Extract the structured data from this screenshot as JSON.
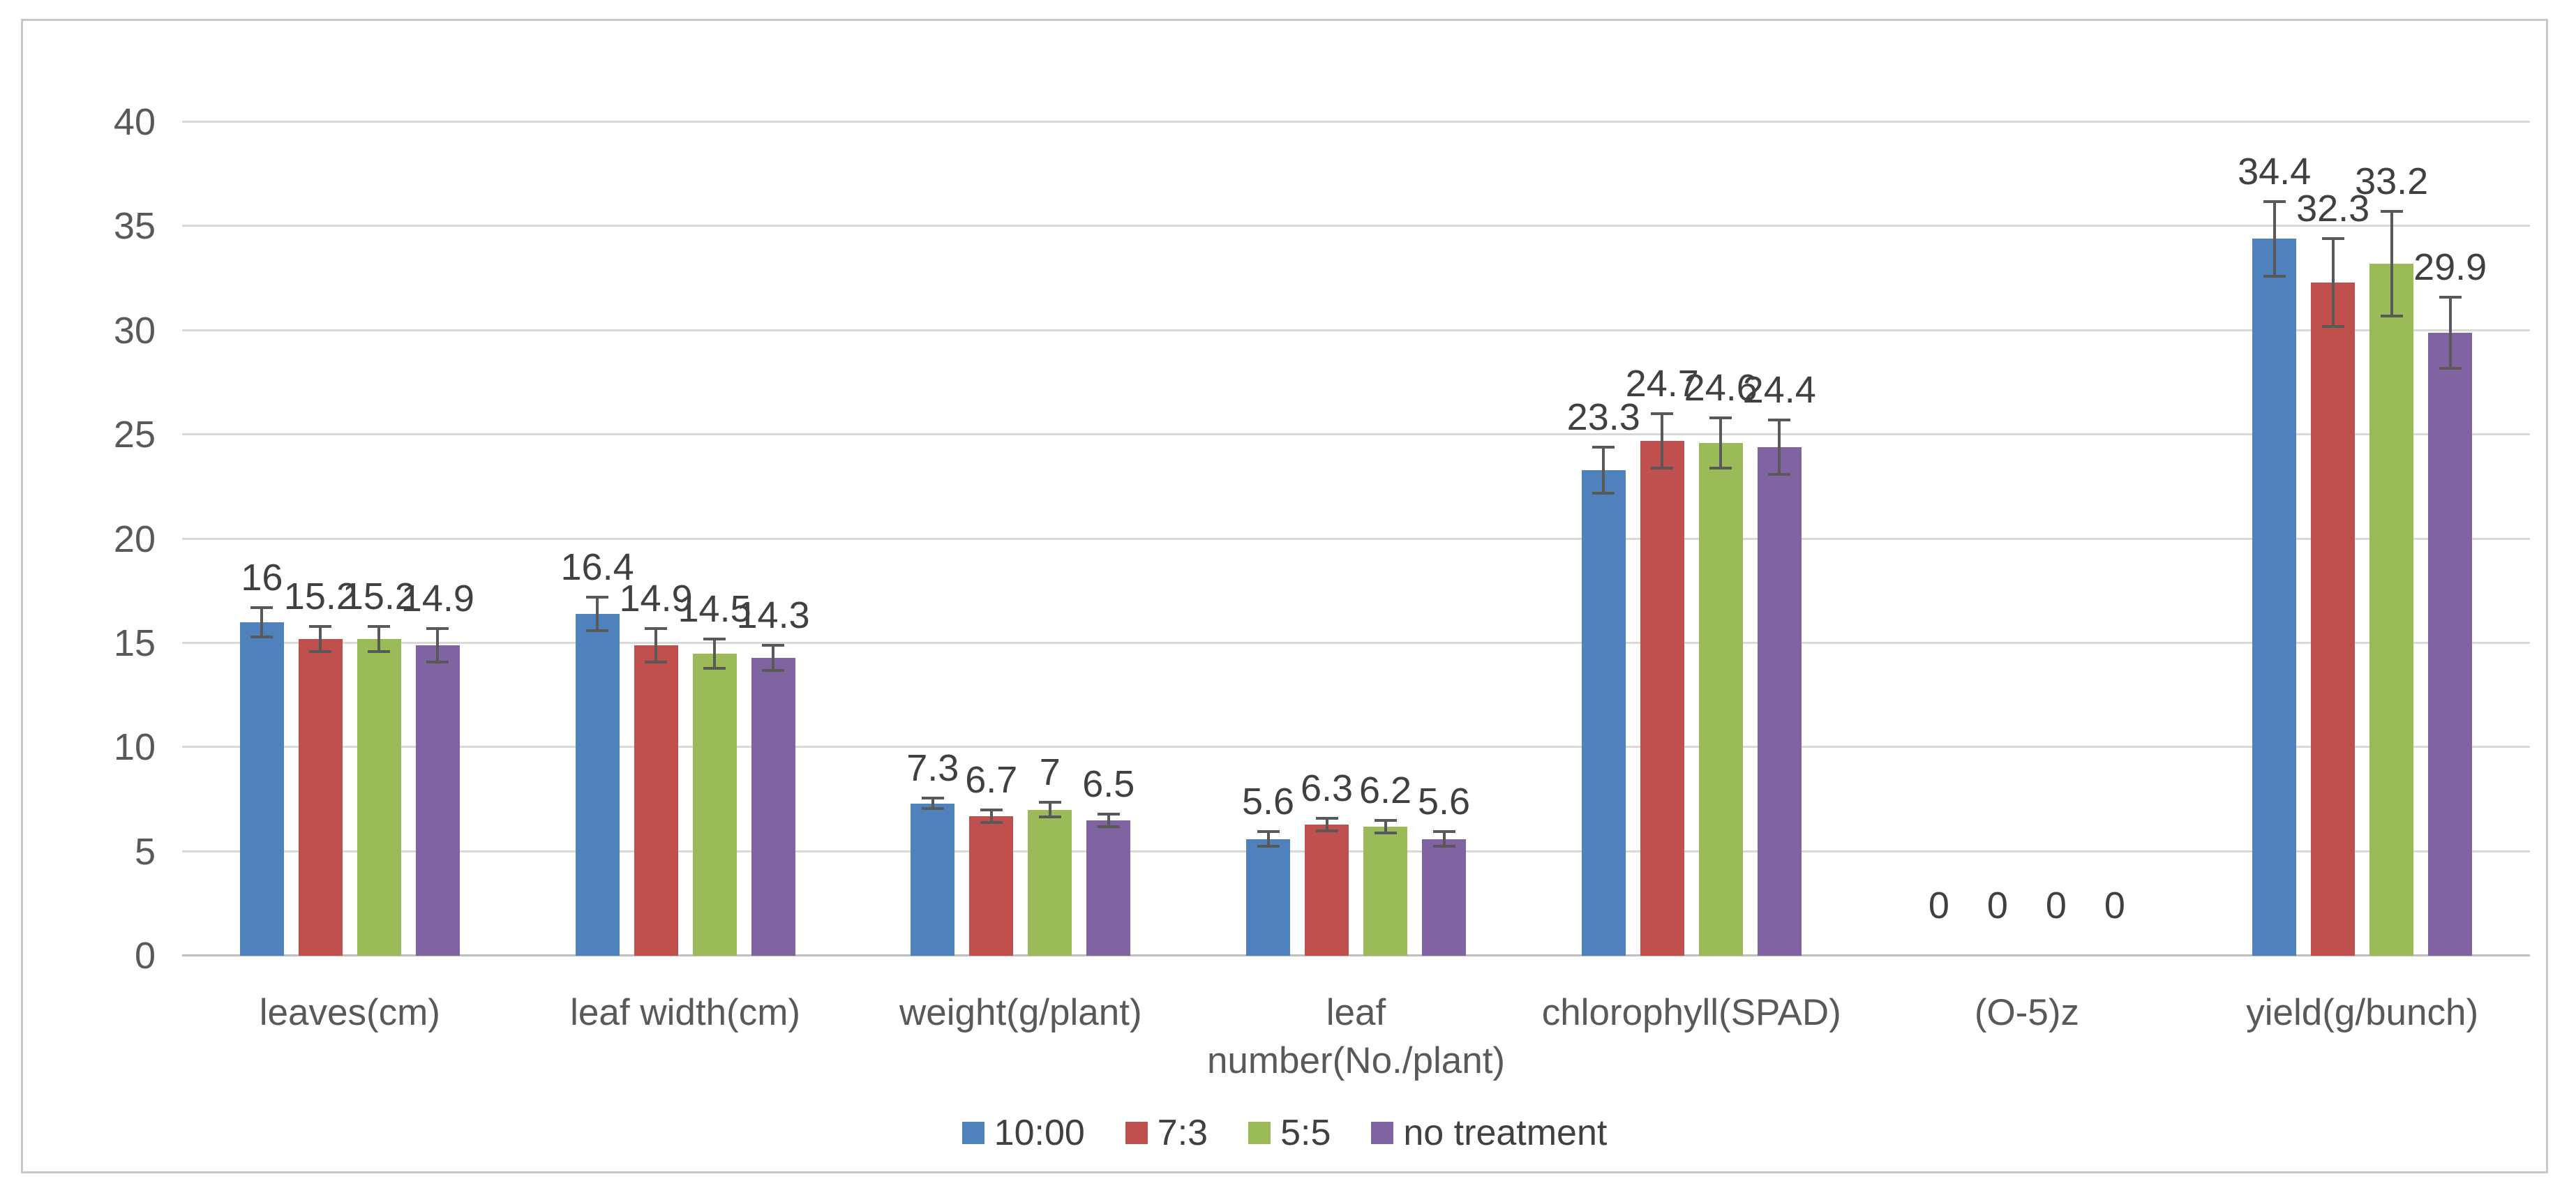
{
  "figure": {
    "background": "#FFFFFF",
    "frame_border_color": "#C9C9C9"
  },
  "chart_data": {
    "type": "bar",
    "title": "",
    "xlabel": "",
    "ylabel": "",
    "categories": [
      "leaves(cm)",
      "leaf width(cm)",
      "weight(g/plant)",
      "leaf number(No./plant)",
      "chlorophyll(SPAD)",
      "(O-5)z",
      "yield(g/bunch)"
    ],
    "series": [
      {
        "name": "10:00",
        "color": "#4F81BD",
        "values": [
          16,
          16.4,
          7.3,
          5.6,
          23.3,
          0,
          34.4
        ],
        "labels": [
          "16",
          "16.4",
          "7.3",
          "5.6",
          "23.3",
          "0",
          "34.4"
        ],
        "errors": [
          0.7,
          0.8,
          0.25,
          0.35,
          1.1,
          0,
          1.8
        ]
      },
      {
        "name": "7:3",
        "color": "#C0504D",
        "values": [
          15.2,
          14.9,
          6.7,
          6.3,
          24.7,
          0,
          32.3
        ],
        "labels": [
          "15.2",
          "14.9",
          "6.7",
          "6.3",
          "24.7",
          "0",
          "32.3"
        ],
        "errors": [
          0.6,
          0.8,
          0.3,
          0.3,
          1.3,
          0,
          2.1
        ]
      },
      {
        "name": "5:5",
        "color": "#9BBB59",
        "values": [
          15.2,
          14.5,
          7,
          6.2,
          24.6,
          0,
          33.2
        ],
        "labels": [
          "15.2",
          "14.5",
          "7",
          "6.2",
          "24.6",
          "0",
          "33.2"
        ],
        "errors": [
          0.6,
          0.7,
          0.35,
          0.3,
          1.2,
          0,
          2.5
        ]
      },
      {
        "name": "no treatment",
        "color": "#8064A2",
        "values": [
          14.9,
          14.3,
          6.5,
          5.6,
          24.4,
          0,
          29.9
        ],
        "labels": [
          "14.9",
          "14.3",
          "6.5",
          "5.6",
          "24.4",
          "0",
          "29.9"
        ],
        "errors": [
          0.8,
          0.6,
          0.3,
          0.35,
          1.3,
          0,
          1.7
        ]
      }
    ],
    "y_axis": {
      "min": 0,
      "max": 40,
      "step": 5,
      "tick_labels": [
        "0",
        "5",
        "10",
        "15",
        "20",
        "25",
        "30",
        "35",
        "40"
      ]
    },
    "grid": true,
    "legend_position": "bottom",
    "gridline_color": "#D9D9D9",
    "axis_line_color": "#BFBFBF",
    "error_bar_color": "#595959",
    "tick_text_color": "#595959",
    "category_text_color": "#595959",
    "data_label_color": "#404040",
    "legend_text_color": "#404040"
  }
}
